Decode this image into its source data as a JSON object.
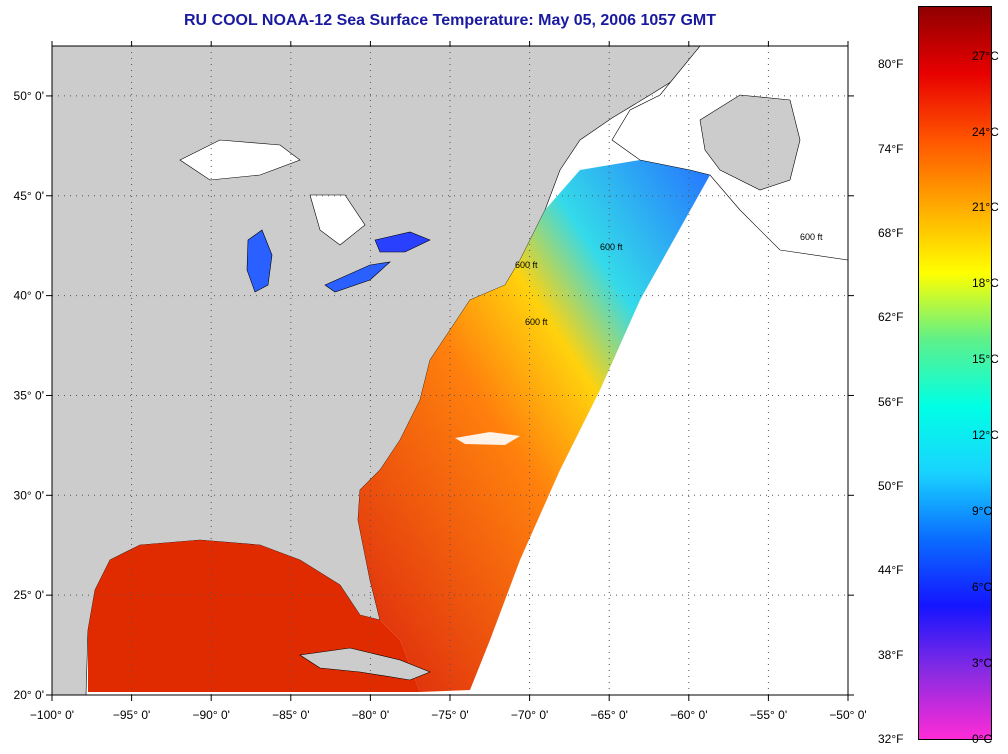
{
  "title": "RU COOL  NOAA-12  Sea Surface Temperature:  May 05, 2006 1057 GMT",
  "map": {
    "lon_range": [
      -100,
      -50
    ],
    "lat_range": [
      20,
      52.5
    ],
    "lon_ticks": [
      {
        "value": -100,
        "label": "−100° 0'"
      },
      {
        "value": -95,
        "label": "−95° 0'"
      },
      {
        "value": -90,
        "label": "−90° 0'"
      },
      {
        "value": -85,
        "label": "−85° 0'"
      },
      {
        "value": -80,
        "label": "−80° 0'"
      },
      {
        "value": -75,
        "label": "−75° 0'"
      },
      {
        "value": -70,
        "label": "−70° 0'"
      },
      {
        "value": -65,
        "label": "−65° 0'"
      },
      {
        "value": -60,
        "label": "−60° 0'"
      },
      {
        "value": -55,
        "label": "−55° 0'"
      },
      {
        "value": -50,
        "label": "−50° 0'"
      }
    ],
    "lat_ticks": [
      {
        "value": 20,
        "label": "20° 0'"
      },
      {
        "value": 25,
        "label": "25° 0'"
      },
      {
        "value": 30,
        "label": "30° 0'"
      },
      {
        "value": 35,
        "label": "35° 0'"
      },
      {
        "value": 40,
        "label": "40° 0'"
      },
      {
        "value": 45,
        "label": "45° 0'"
      },
      {
        "value": 50,
        "label": "50° 0'"
      }
    ],
    "contour_labels": [
      "600 ft",
      "600 ft",
      "600 ft",
      "600 ft"
    ],
    "colors": {
      "land": "#cccccc",
      "no_data": "#ffffff",
      "gridline": "#555555"
    }
  },
  "colorbar": {
    "range_c": [
      0,
      29
    ],
    "fahrenheit_labels": [
      {
        "value_c": 0,
        "label": "32°F"
      },
      {
        "value_c": 3.33,
        "label": "38°F"
      },
      {
        "value_c": 6.67,
        "label": "44°F"
      },
      {
        "value_c": 10,
        "label": "50°F"
      },
      {
        "value_c": 13.33,
        "label": "56°F"
      },
      {
        "value_c": 16.67,
        "label": "62°F"
      },
      {
        "value_c": 20,
        "label": "68°F"
      },
      {
        "value_c": 23.33,
        "label": "74°F"
      },
      {
        "value_c": 26.67,
        "label": "80°F"
      }
    ],
    "celsius_labels": [
      {
        "value_c": 0,
        "label": "0°C"
      },
      {
        "value_c": 3,
        "label": "3°C"
      },
      {
        "value_c": 6,
        "label": "6°C"
      },
      {
        "value_c": 9,
        "label": "9°C"
      },
      {
        "value_c": 12,
        "label": "12°C"
      },
      {
        "value_c": 15,
        "label": "15°C"
      },
      {
        "value_c": 18,
        "label": "18°C"
      },
      {
        "value_c": 21,
        "label": "21°C"
      },
      {
        "value_c": 24,
        "label": "24°C"
      },
      {
        "value_c": 27,
        "label": "27°C"
      }
    ],
    "gradient": [
      "#ff2bd6",
      "#8a2be2",
      "#1515ff",
      "#0a6cff",
      "#19d3ff",
      "#00ffe5",
      "#5ef08a",
      "#ffff00",
      "#ffaa00",
      "#ff5500",
      "#e80000",
      "#900000"
    ]
  }
}
